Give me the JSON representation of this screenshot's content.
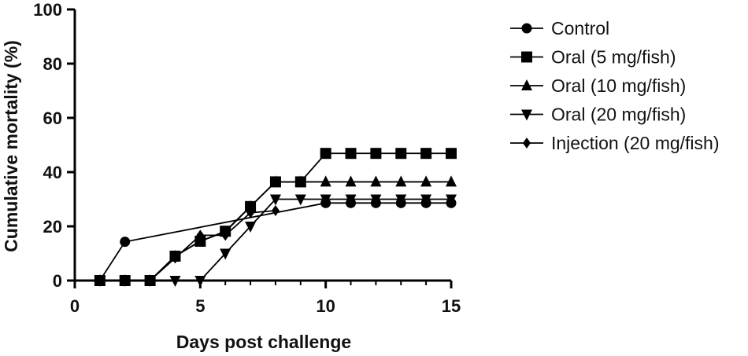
{
  "chart_data": {
    "type": "line",
    "xlabel": "Days post challenge",
    "ylabel": "Cumulative mortality (%)",
    "xlim": [
      0,
      15
    ],
    "ylim": [
      0,
      100
    ],
    "xticks": [
      0,
      5,
      10,
      15
    ],
    "yticks": [
      0,
      20,
      40,
      60,
      80,
      100
    ],
    "grid": false,
    "legend_position": "right",
    "series": [
      {
        "name": "Control",
        "marker": "circle",
        "x": [
          1,
          2,
          10,
          11,
          12,
          13,
          14,
          15
        ],
        "y": [
          0,
          14.3,
          28.6,
          28.6,
          28.6,
          28.6,
          28.6,
          28.6
        ]
      },
      {
        "name": "Oral (5 mg/fish)",
        "marker": "square",
        "x": [
          1,
          2,
          3,
          4,
          5,
          6,
          7,
          8,
          9,
          10,
          11,
          12,
          13,
          14,
          15
        ],
        "y": [
          0,
          0,
          0,
          9,
          14.5,
          18.2,
          27.3,
          36.4,
          36.4,
          46.9,
          46.9,
          46.9,
          46.9,
          46.9,
          46.9
        ]
      },
      {
        "name": "Oral (10 mg/fish)",
        "marker": "triangle-up",
        "x": [
          1,
          2,
          3,
          4,
          5,
          6,
          7,
          8,
          9,
          10,
          11,
          12,
          13,
          14,
          15
        ],
        "y": [
          0,
          0,
          0,
          9,
          14.5,
          18,
          27.3,
          36.4,
          36.4,
          36.4,
          36.4,
          36.4,
          36.4,
          36.4,
          36.4
        ]
      },
      {
        "name": "Oral (20 mg/fish)",
        "marker": "triangle-down",
        "x": [
          1,
          2,
          3,
          4,
          5,
          6,
          7,
          8,
          9,
          10,
          11,
          12,
          13,
          14,
          15
        ],
        "y": [
          0,
          0,
          0,
          0,
          0,
          10,
          20,
          30,
          30,
          30,
          30,
          30,
          30,
          30,
          30
        ]
      },
      {
        "name": "Injection (20 mg/fish)",
        "marker": "diamond",
        "x": [
          1,
          2,
          3,
          4,
          5,
          6,
          7,
          8
        ],
        "y": [
          0,
          0,
          0,
          8.3,
          16.7,
          16.7,
          25,
          25.8
        ]
      }
    ]
  }
}
